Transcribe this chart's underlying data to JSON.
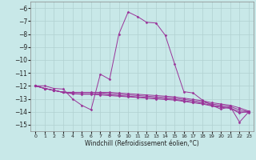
{
  "title": "",
  "xlabel": "Windchill (Refroidissement éolien,°C)",
  "xlim": [
    -0.5,
    23.5
  ],
  "ylim": [
    -15.5,
    -5.5
  ],
  "xticks": [
    0,
    1,
    2,
    3,
    4,
    5,
    6,
    7,
    8,
    9,
    10,
    11,
    12,
    13,
    14,
    15,
    16,
    17,
    18,
    19,
    20,
    21,
    22,
    23
  ],
  "yticks": [
    -6,
    -7,
    -8,
    -9,
    -10,
    -11,
    -12,
    -13,
    -14,
    -15
  ],
  "background_color": "#c8e8e8",
  "grid_color": "#b0d0d0",
  "line_color": "#993399",
  "lines": [
    [
      0,
      -12,
      1,
      -12,
      2,
      -12.2,
      3,
      -12.25,
      4,
      -13.0,
      5,
      -13.5,
      6,
      -13.85,
      7,
      -11.1,
      8,
      -11.5,
      9,
      -8.0,
      10,
      -6.3,
      11,
      -6.65,
      12,
      -7.1,
      13,
      -7.15,
      14,
      -8.1,
      15,
      -10.3,
      16,
      -12.45,
      17,
      -12.55,
      18,
      -13.1,
      19,
      -13.5,
      20,
      -13.8,
      21,
      -13.6,
      22,
      -14.8,
      23,
      -14.0
    ],
    [
      0,
      -12,
      1,
      -12.2,
      2,
      -12.35,
      3,
      -12.5,
      4,
      -12.5,
      5,
      -12.5,
      6,
      -12.5,
      7,
      -12.5,
      8,
      -12.5,
      9,
      -12.55,
      10,
      -12.6,
      11,
      -12.65,
      12,
      -12.7,
      13,
      -12.75,
      14,
      -12.8,
      15,
      -12.85,
      16,
      -12.95,
      17,
      -13.05,
      18,
      -13.15,
      19,
      -13.3,
      20,
      -13.4,
      21,
      -13.5,
      22,
      -13.7,
      23,
      -13.95
    ],
    [
      0,
      -12,
      1,
      -12.2,
      2,
      -12.35,
      3,
      -12.5,
      4,
      -12.5,
      5,
      -12.52,
      6,
      -12.52,
      7,
      -12.55,
      8,
      -12.6,
      9,
      -12.65,
      10,
      -12.7,
      11,
      -12.75,
      12,
      -12.8,
      13,
      -12.85,
      14,
      -12.9,
      15,
      -12.95,
      16,
      -13.05,
      17,
      -13.15,
      18,
      -13.25,
      19,
      -13.4,
      20,
      -13.5,
      21,
      -13.6,
      22,
      -13.85,
      23,
      -14.0
    ],
    [
      0,
      -12,
      1,
      -12.2,
      2,
      -12.35,
      3,
      -12.5,
      4,
      -12.6,
      5,
      -12.62,
      6,
      -12.62,
      7,
      -12.65,
      8,
      -12.7,
      9,
      -12.75,
      10,
      -12.8,
      11,
      -12.85,
      12,
      -12.9,
      13,
      -12.95,
      14,
      -13.0,
      15,
      -13.05,
      16,
      -13.15,
      17,
      -13.25,
      18,
      -13.35,
      19,
      -13.5,
      20,
      -13.6,
      21,
      -13.7,
      22,
      -14.0,
      23,
      -14.05
    ],
    [
      0,
      -12,
      1,
      -12.2,
      2,
      -12.35,
      3,
      -12.5,
      4,
      -12.6,
      5,
      -12.65,
      6,
      -12.65,
      7,
      -12.7,
      8,
      -12.75,
      9,
      -12.8,
      10,
      -12.85,
      11,
      -12.9,
      12,
      -12.95,
      13,
      -13.0,
      14,
      -13.05,
      15,
      -13.1,
      16,
      -13.2,
      17,
      -13.3,
      18,
      -13.4,
      19,
      -13.55,
      20,
      -13.65,
      21,
      -13.75,
      22,
      -14.1,
      23,
      -13.95
    ]
  ]
}
